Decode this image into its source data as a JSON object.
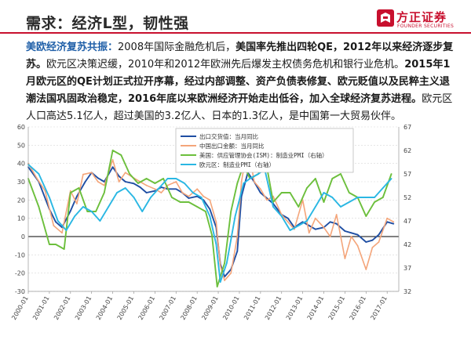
{
  "header": {
    "title": "需求：经济L型，韧性强",
    "logo_cn": "方正证券",
    "logo_en": "FOUNDER SECURITIES",
    "brand_color": "#c8102e"
  },
  "body": {
    "lead": "美欧经济复苏共振：",
    "s1": "2008年国际金融危机后，",
    "s2": "美国率先推出四轮QE，2012年以来经济逐步复苏。",
    "s3": "欧元区决策迟缓，2010年和2012年欧洲先后爆发主权债务危机和银行业危机。",
    "s4": "2015年1月欧元区的QE计划正式拉开序幕，经过内部调整、资产负债表修复、欧元贬值以及民粹主义退潮法国巩固政治稳定，2016年底以来欧洲经济开始走出低谷，加入全球经济复苏进程。",
    "s5": "欧元区人口高达5.1亿人，超过美国的3.2亿人、日本的1.3亿人，是中国第一大贸易伙伴。"
  },
  "chart_data": {
    "type": "line",
    "left_axis": {
      "ylim": [
        -30,
        60
      ],
      "ticks": [
        -30,
        -20,
        -10,
        0,
        10,
        20,
        30,
        40,
        50,
        60
      ]
    },
    "right_axis": {
      "ylim": [
        32,
        67
      ],
      "ticks": [
        32,
        37,
        42,
        47,
        52,
        57,
        62,
        67
      ]
    },
    "x_range": [
      "2000-01",
      "2017-06"
    ],
    "x_tick_labels": [
      "2000-01",
      "2001-01",
      "2002-01",
      "2003-01",
      "2004-01",
      "2005-01",
      "2006-01",
      "2007-01",
      "2008-01",
      "2009-01",
      "2010-01",
      "2011-01",
      "2012-01",
      "2013-01",
      "2014-01",
      "2015-01",
      "2016-01",
      "2017-01"
    ],
    "grid": true,
    "legend_position": "top-center",
    "series": [
      {
        "name": "出口交货值：当月同比",
        "axis": "left",
        "color": "#1f4ea3",
        "x": [
          2000.0,
          2000.5,
          2001.0,
          2001.3,
          2001.6,
          2002.0,
          2002.3,
          2002.7,
          2003.0,
          2003.3,
          2003.6,
          2004.0,
          2004.3,
          2004.6,
          2005.0,
          2005.3,
          2005.6,
          2006.0,
          2006.3,
          2006.6,
          2007.0,
          2007.3,
          2007.6,
          2008.0,
          2008.3,
          2008.6,
          2008.9,
          2009.1,
          2009.3,
          2009.6,
          2009.9,
          2010.1,
          2010.4,
          2010.7,
          2011.0,
          2011.3,
          2011.6,
          2012.0,
          2012.3,
          2012.6,
          2013.0,
          2013.3,
          2013.6,
          2014.0,
          2014.3,
          2014.6,
          2015.0,
          2015.3,
          2015.6,
          2016.0,
          2016.3,
          2016.6,
          2017.0,
          2017.3
        ],
        "y": [
          38,
          30,
          15,
          8,
          5,
          14,
          22,
          30,
          35,
          32,
          30,
          38,
          33,
          30,
          29,
          27,
          24,
          25,
          27,
          26,
          26,
          24,
          21,
          22,
          20,
          15,
          5,
          -15,
          -22,
          -18,
          -8,
          22,
          35,
          30,
          24,
          21,
          18,
          12,
          10,
          5,
          8,
          6,
          4,
          5,
          8,
          7,
          3,
          2,
          1,
          -3,
          -2,
          1,
          8,
          7
        ]
      },
      {
        "name": "中国出口金额：当月同比",
        "axis": "left",
        "color": "#f4a57a",
        "x": [
          2000.0,
          2000.4,
          2000.8,
          2001.2,
          2001.6,
          2002.0,
          2002.3,
          2002.6,
          2003.0,
          2003.3,
          2003.6,
          2004.0,
          2004.3,
          2004.6,
          2005.0,
          2005.3,
          2005.6,
          2006.0,
          2006.3,
          2006.6,
          2007.0,
          2007.3,
          2007.6,
          2008.0,
          2008.3,
          2008.6,
          2008.9,
          2009.1,
          2009.3,
          2009.6,
          2009.9,
          2010.1,
          2010.4,
          2010.7,
          2011.0,
          2011.3,
          2011.6,
          2012.0,
          2012.3,
          2012.6,
          2013.0,
          2013.3,
          2013.6,
          2014.0,
          2014.3,
          2014.6,
          2015.0,
          2015.3,
          2015.6,
          2016.0,
          2016.3,
          2016.6,
          2017.0,
          2017.3
        ],
        "y": [
          40,
          32,
          25,
          6,
          2,
          25,
          18,
          34,
          35,
          30,
          28,
          42,
          30,
          35,
          32,
          30,
          28,
          26,
          24,
          28,
          30,
          24,
          22,
          26,
          22,
          20,
          8,
          -16,
          -24,
          -20,
          0,
          30,
          50,
          30,
          26,
          20,
          22,
          12,
          8,
          4,
          20,
          2,
          10,
          5,
          0,
          12,
          -12,
          0,
          -5,
          -18,
          -6,
          -3,
          10,
          8
        ]
      },
      {
        "name": "美国：供应管理协会(ISM)：制造业PMI（右轴）",
        "axis": "right",
        "color": "#6cbf3c",
        "x": [
          2000.0,
          2000.5,
          2001.0,
          2001.3,
          2001.7,
          2002.0,
          2002.4,
          2002.8,
          2003.2,
          2003.6,
          2004.0,
          2004.4,
          2004.8,
          2005.2,
          2005.6,
          2006.0,
          2006.4,
          2006.8,
          2007.2,
          2007.6,
          2008.0,
          2008.4,
          2008.7,
          2008.95,
          2009.3,
          2009.6,
          2009.9,
          2010.2,
          2010.5,
          2010.9,
          2011.2,
          2011.6,
          2012.0,
          2012.4,
          2012.8,
          2013.2,
          2013.6,
          2014.0,
          2014.4,
          2014.8,
          2015.2,
          2015.6,
          2016.0,
          2016.4,
          2016.8,
          2017.2
        ],
        "y": [
          56,
          50,
          42,
          42,
          41,
          53,
          54,
          49,
          49,
          53,
          62,
          61,
          57,
          55,
          56,
          55,
          56,
          52,
          51,
          51,
          50,
          49,
          44,
          33,
          38,
          49,
          55,
          59,
          56,
          57,
          61,
          51,
          53,
          53,
          50,
          54,
          56,
          51,
          56,
          57,
          53,
          52,
          48,
          51,
          52,
          57
        ]
      },
      {
        "name": "欧元区：制造业PMI（右轴）",
        "axis": "right",
        "color": "#2ab7e3",
        "x": [
          2000.0,
          2000.5,
          2001.0,
          2001.4,
          2001.8,
          2002.2,
          2002.6,
          2003.0,
          2003.4,
          2003.8,
          2004.2,
          2004.6,
          2005.0,
          2005.4,
          2005.8,
          2006.2,
          2006.6,
          2007.0,
          2007.4,
          2007.8,
          2008.2,
          2008.6,
          2008.9,
          2009.1,
          2009.4,
          2009.8,
          2010.2,
          2010.5,
          2010.9,
          2011.2,
          2011.6,
          2012.0,
          2012.4,
          2012.8,
          2013.2,
          2013.6,
          2014.0,
          2014.4,
          2014.8,
          2015.2,
          2015.6,
          2016.0,
          2016.4,
          2016.8,
          2017.2
        ],
        "y": [
          59,
          57,
          52,
          47,
          45,
          48,
          50,
          49,
          47,
          50,
          53,
          54,
          52,
          49,
          52,
          54,
          56,
          56,
          55,
          53,
          52,
          48,
          42,
          34,
          38,
          48,
          55,
          56,
          57,
          58,
          50,
          48,
          45,
          46,
          47,
          50,
          53,
          52,
          50,
          51,
          52,
          52,
          52,
          54,
          56
        ]
      }
    ]
  }
}
